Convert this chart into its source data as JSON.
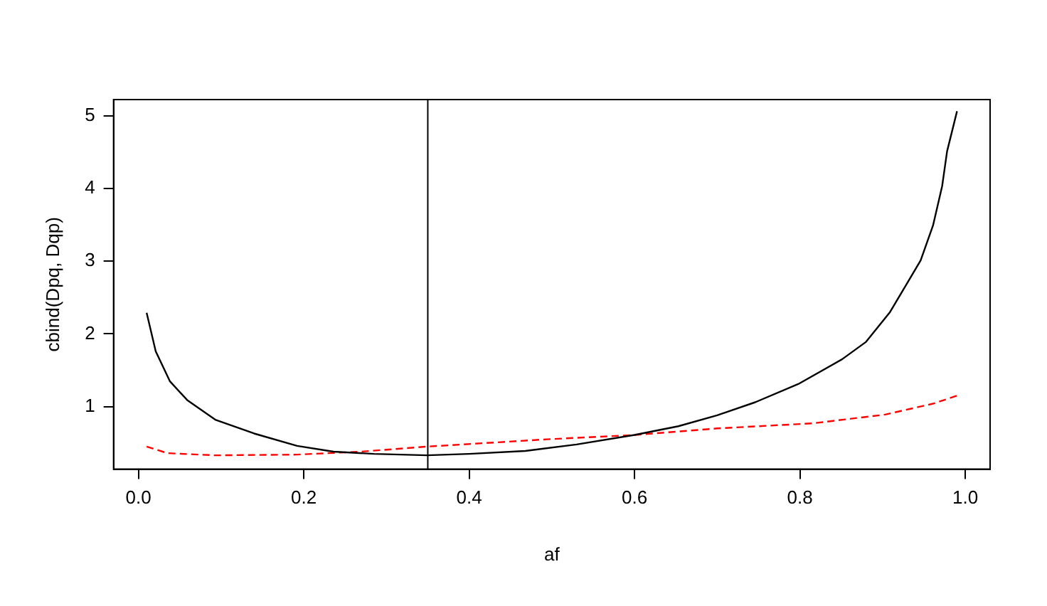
{
  "chart_data": {
    "type": "line",
    "xlabel": "af",
    "ylabel": "cbind(Dpq, Dqp)",
    "xlim": [
      -0.03,
      1.03
    ],
    "ylim": [
      0.14,
      5.22
    ],
    "xticks": [
      {
        "value": 0,
        "label": "0.0"
      },
      0.2,
      0.4,
      0.6,
      0.8,
      {
        "value": 1,
        "label": "1.0"
      }
    ],
    "yticks": [
      1,
      2,
      3,
      4,
      5
    ],
    "series": [
      {
        "color": "#000000",
        "line_style": "solid",
        "x": [
          0.01,
          0.021,
          0.038,
          0.059,
          0.093,
          0.14,
          0.192,
          0.236,
          0.285,
          0.349,
          0.4,
          0.468,
          0.53,
          0.6,
          0.653,
          0.7,
          0.746,
          0.798,
          0.851,
          0.88,
          0.909,
          0.932,
          0.946,
          0.961,
          0.972,
          0.978,
          0.99
        ],
        "values": [
          2.29,
          1.76,
          1.35,
          1.09,
          0.82,
          0.63,
          0.46,
          0.38,
          0.35,
          0.33,
          0.35,
          0.39,
          0.48,
          0.61,
          0.73,
          0.88,
          1.06,
          1.31,
          1.65,
          1.89,
          2.3,
          2.74,
          3.01,
          3.49,
          4.03,
          4.51,
          5.06
        ]
      },
      {
        "color": "#ff0000",
        "line_style": "dashed",
        "x": [
          0.01,
          0.035,
          0.093,
          0.192,
          0.268,
          0.349,
          0.494,
          0.6,
          0.7,
          0.816,
          0.903,
          0.961,
          0.99
        ],
        "values": [
          0.45,
          0.36,
          0.33,
          0.34,
          0.38,
          0.45,
          0.55,
          0.61,
          0.7,
          0.77,
          0.89,
          1.04,
          1.15
        ]
      }
    ],
    "ref_lines": [
      {
        "axis": "x",
        "value": 0.35,
        "color": "#000000"
      }
    ]
  }
}
